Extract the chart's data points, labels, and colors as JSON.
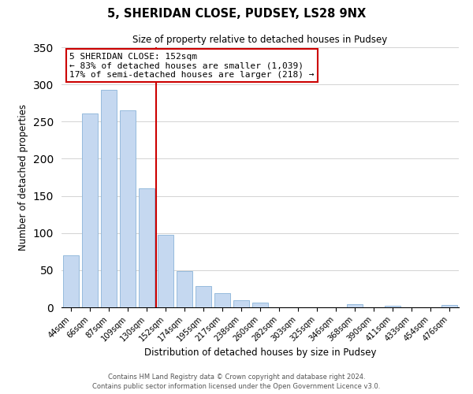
{
  "title": "5, SHERIDAN CLOSE, PUDSEY, LS28 9NX",
  "subtitle": "Size of property relative to detached houses in Pudsey",
  "xlabel": "Distribution of detached houses by size in Pudsey",
  "ylabel": "Number of detached properties",
  "bar_labels": [
    "44sqm",
    "66sqm",
    "87sqm",
    "109sqm",
    "130sqm",
    "152sqm",
    "174sqm",
    "195sqm",
    "217sqm",
    "238sqm",
    "260sqm",
    "282sqm",
    "303sqm",
    "325sqm",
    "346sqm",
    "368sqm",
    "390sqm",
    "411sqm",
    "433sqm",
    "454sqm",
    "476sqm"
  ],
  "bar_values": [
    70,
    261,
    293,
    265,
    160,
    98,
    49,
    29,
    19,
    10,
    6,
    0,
    0,
    0,
    0,
    4,
    0,
    2,
    0,
    0,
    3
  ],
  "bar_color": "#c5d8f0",
  "bar_edge_color": "#8ab4d8",
  "vline_x": 4.5,
  "vline_color": "#cc0000",
  "annotation_title": "5 SHERIDAN CLOSE: 152sqm",
  "annotation_line1": "← 83% of detached houses are smaller (1,039)",
  "annotation_line2": "17% of semi-detached houses are larger (218) →",
  "annotation_box_color": "#cc0000",
  "ylim": [
    0,
    350
  ],
  "yticks": [
    0,
    50,
    100,
    150,
    200,
    250,
    300,
    350
  ],
  "footer1": "Contains HM Land Registry data © Crown copyright and database right 2024.",
  "footer2": "Contains public sector information licensed under the Open Government Licence v3.0."
}
